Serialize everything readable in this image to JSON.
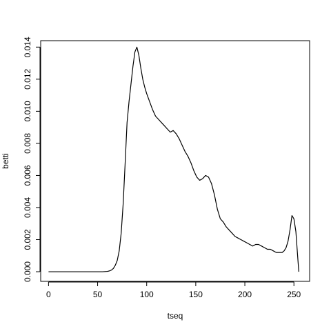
{
  "chart_data": {
    "type": "line",
    "title": "",
    "xlabel": "tseq",
    "ylabel": "betti",
    "xlim": [
      -8,
      266
    ],
    "ylim": [
      -0.0006,
      0.0144
    ],
    "x_ticks": [
      0,
      50,
      100,
      150,
      200,
      250
    ],
    "y_ticks": [
      0.0,
      0.002,
      0.004,
      0.006,
      0.008,
      0.01,
      0.012,
      0.014
    ],
    "y_tick_labels": [
      "0.000",
      "0.002",
      "0.004",
      "0.006",
      "0.008",
      "0.010",
      "0.012",
      "0.014"
    ],
    "grid": false,
    "legend": "none",
    "series": [
      {
        "color": "#000000",
        "x": [
          0,
          10,
          20,
          30,
          40,
          50,
          55,
          60,
          62,
          64,
          66,
          68,
          70,
          72,
          74,
          76,
          78,
          80,
          82,
          84,
          86,
          88,
          90,
          92,
          94,
          96,
          98,
          100,
          103,
          106,
          109,
          112,
          115,
          118,
          121,
          124,
          127,
          130,
          133,
          136,
          139,
          142,
          145,
          148,
          151,
          154,
          157,
          160,
          163,
          166,
          169,
          172,
          175,
          178,
          181,
          184,
          187,
          190,
          193,
          196,
          199,
          202,
          205,
          208,
          211,
          214,
          217,
          220,
          223,
          226,
          229,
          232,
          235,
          238,
          240,
          242,
          244,
          246,
          248,
          250,
          252,
          254,
          255
        ],
        "y": [
          0.0,
          0.0,
          0.0,
          0.0,
          0.0,
          0.0,
          0.0,
          2e-05,
          5e-05,
          0.0001,
          0.0002,
          0.0004,
          0.0007,
          0.0013,
          0.0024,
          0.0042,
          0.0067,
          0.0093,
          0.0106,
          0.0117,
          0.0128,
          0.0137,
          0.014,
          0.0135,
          0.0127,
          0.012,
          0.0115,
          0.0111,
          0.0106,
          0.0101,
          0.0097,
          0.0095,
          0.0093,
          0.0091,
          0.0089,
          0.0087,
          0.0088,
          0.0086,
          0.0083,
          0.0079,
          0.0075,
          0.0072,
          0.0068,
          0.0063,
          0.0059,
          0.0057,
          0.0058,
          0.006,
          0.0059,
          0.0055,
          0.0048,
          0.0039,
          0.0033,
          0.0031,
          0.0028,
          0.0026,
          0.0024,
          0.0022,
          0.0021,
          0.002,
          0.0019,
          0.0018,
          0.0017,
          0.0016,
          0.0017,
          0.0017,
          0.0016,
          0.0015,
          0.0014,
          0.0014,
          0.0013,
          0.0012,
          0.0012,
          0.0012,
          0.0013,
          0.0015,
          0.0019,
          0.0026,
          0.0035,
          0.0033,
          0.0025,
          0.0008,
          0.0
        ]
      }
    ]
  }
}
